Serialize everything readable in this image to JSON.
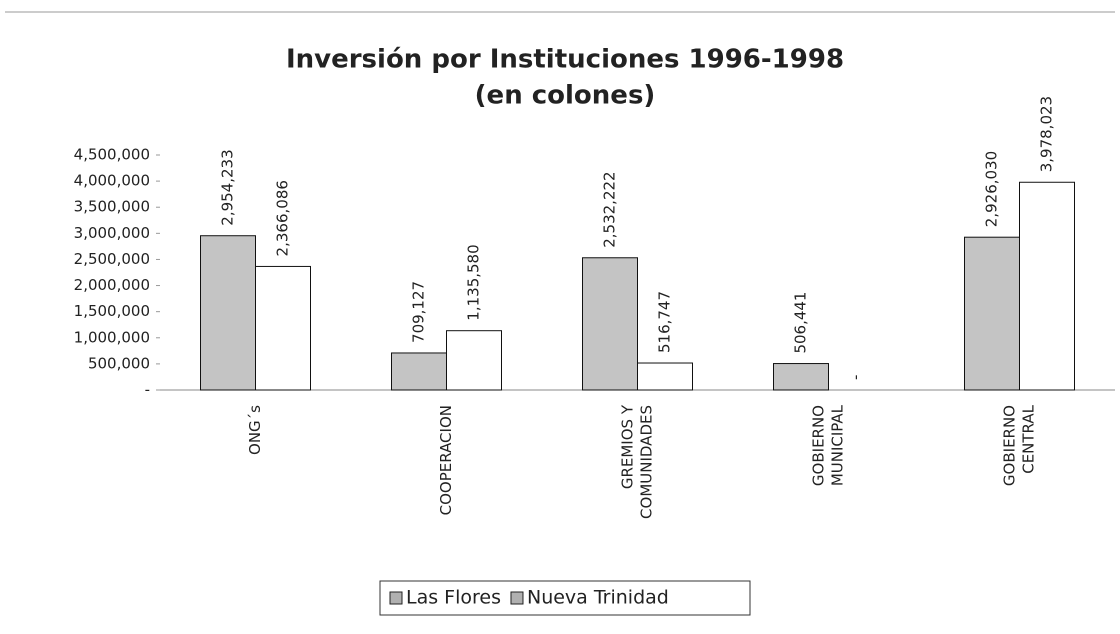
{
  "chart_data": {
    "type": "bar",
    "title": "Inversión por Instituciones 1996-1998",
    "subtitle": "(en colones)",
    "categories": [
      [
        "ONG´s"
      ],
      [
        "COOPERACION"
      ],
      [
        "GREMIOS Y",
        "COMUNIDADES"
      ],
      [
        "GOBIERNO",
        "MUNICIPAL"
      ],
      [
        "GOBIERNO",
        "CENTRAL"
      ]
    ],
    "series": [
      {
        "name": "Las Flores",
        "color": "#c4c4c4",
        "values": [
          2954233,
          709127,
          2532222,
          506441,
          2926030
        ],
        "value_labels": [
          "2,954,233",
          "709,127",
          "2,532,222",
          "506,441",
          "2,926,030"
        ]
      },
      {
        "name": "Nueva Trinidad",
        "color": "#ffffff",
        "values": [
          2366086,
          1135580,
          516747,
          0,
          3978023
        ],
        "value_labels": [
          "2,366,086",
          "1,135,580",
          "516,747",
          "-",
          "3,978,023"
        ]
      }
    ],
    "ylim": [
      0,
      4500000
    ],
    "yticks": [
      {
        "value": 0,
        "label": "-"
      },
      {
        "value": 500000,
        "label": "500,000"
      },
      {
        "value": 1000000,
        "label": "1,000,000"
      },
      {
        "value": 1500000,
        "label": "1,500,000"
      },
      {
        "value": 2000000,
        "label": "2,000,000"
      },
      {
        "value": 2500000,
        "label": "2,500,000"
      },
      {
        "value": 3000000,
        "label": "3,000,000"
      },
      {
        "value": 3500000,
        "label": "3,500,000"
      },
      {
        "value": 4000000,
        "label": "4,000,000"
      },
      {
        "value": 4500000,
        "label": "4,500,000"
      }
    ],
    "legend": "bottom"
  }
}
